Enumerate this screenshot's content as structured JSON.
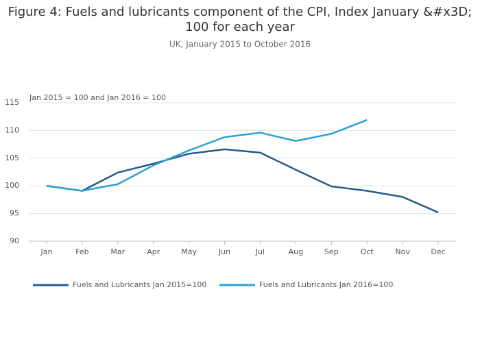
{
  "chart_data": {
    "type": "line",
    "title_lines": [
      "Figure 4: Fuels and lubricants component of the CPI, Index January &#x3D;",
      "100 for each year"
    ],
    "subtitle": "UK, January 2015 to October 2016",
    "annotation": "Jan 2015 = 100 and Jan 2016 = 100",
    "categories": [
      "Jan",
      "Feb",
      "Mar",
      "Apr",
      "May",
      "Jun",
      "Jul",
      "Aug",
      "Sep",
      "Oct",
      "Nov",
      "Dec"
    ],
    "series": [
      {
        "name": "Fuels and Lubricants Jan 2015=100",
        "color": "#245b8d",
        "values": [
          100,
          99.1,
          102.4,
          104,
          105.8,
          106.6,
          106,
          102.9,
          99.9,
          99.1,
          98,
          95.2
        ]
      },
      {
        "name": "Fuels and Lubricants Jan 2016=100",
        "color": "#2ca1d2",
        "values": [
          100,
          99.1,
          100.3,
          103.7,
          106.4,
          108.8,
          109.6,
          108.1,
          109.4,
          111.9,
          null,
          null
        ]
      }
    ],
    "ylim": [
      90,
      115
    ],
    "yticks": [
      90,
      95,
      100,
      105,
      110,
      115
    ],
    "grid": true
  }
}
